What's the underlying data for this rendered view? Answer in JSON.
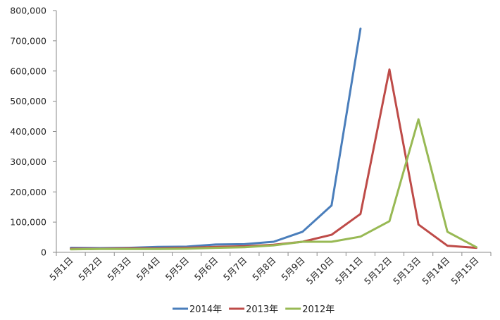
{
  "chart_data": {
    "type": "line",
    "categories": [
      "5月1日",
      "5月2日",
      "5月3日",
      "5月4日",
      "5月5日",
      "5月6日",
      "5月7日",
      "5月8日",
      "5月9日",
      "5月10日",
      "5月11日",
      "5月12日",
      "5月13日",
      "5月14日",
      "5月15日"
    ],
    "series": [
      {
        "name": "2014年",
        "color": "#4a7ebb",
        "values": [
          15000,
          14000,
          15000,
          18000,
          19000,
          26000,
          27000,
          35000,
          68000,
          155000,
          740000,
          null,
          null,
          null,
          null
        ]
      },
      {
        "name": "2013年",
        "color": "#be4b48",
        "values": [
          12000,
          12000,
          13000,
          13000,
          15000,
          18000,
          20000,
          25000,
          35000,
          58000,
          127000,
          605000,
          92000,
          22000,
          15000
        ]
      },
      {
        "name": "2012年",
        "color": "#98b954",
        "values": [
          10000,
          11000,
          11000,
          11000,
          12000,
          15000,
          17000,
          23000,
          35000,
          35000,
          52000,
          103000,
          440000,
          68000,
          17000
        ]
      }
    ],
    "ylim": [
      0,
      800000
    ],
    "yticks": [
      "0",
      "100,000",
      "200,000",
      "300,000",
      "400,000",
      "500,000",
      "600,000",
      "700,000",
      "800,000"
    ],
    "grid": false,
    "legend": "bottom",
    "title": "",
    "xlabel": "",
    "ylabel": ""
  }
}
